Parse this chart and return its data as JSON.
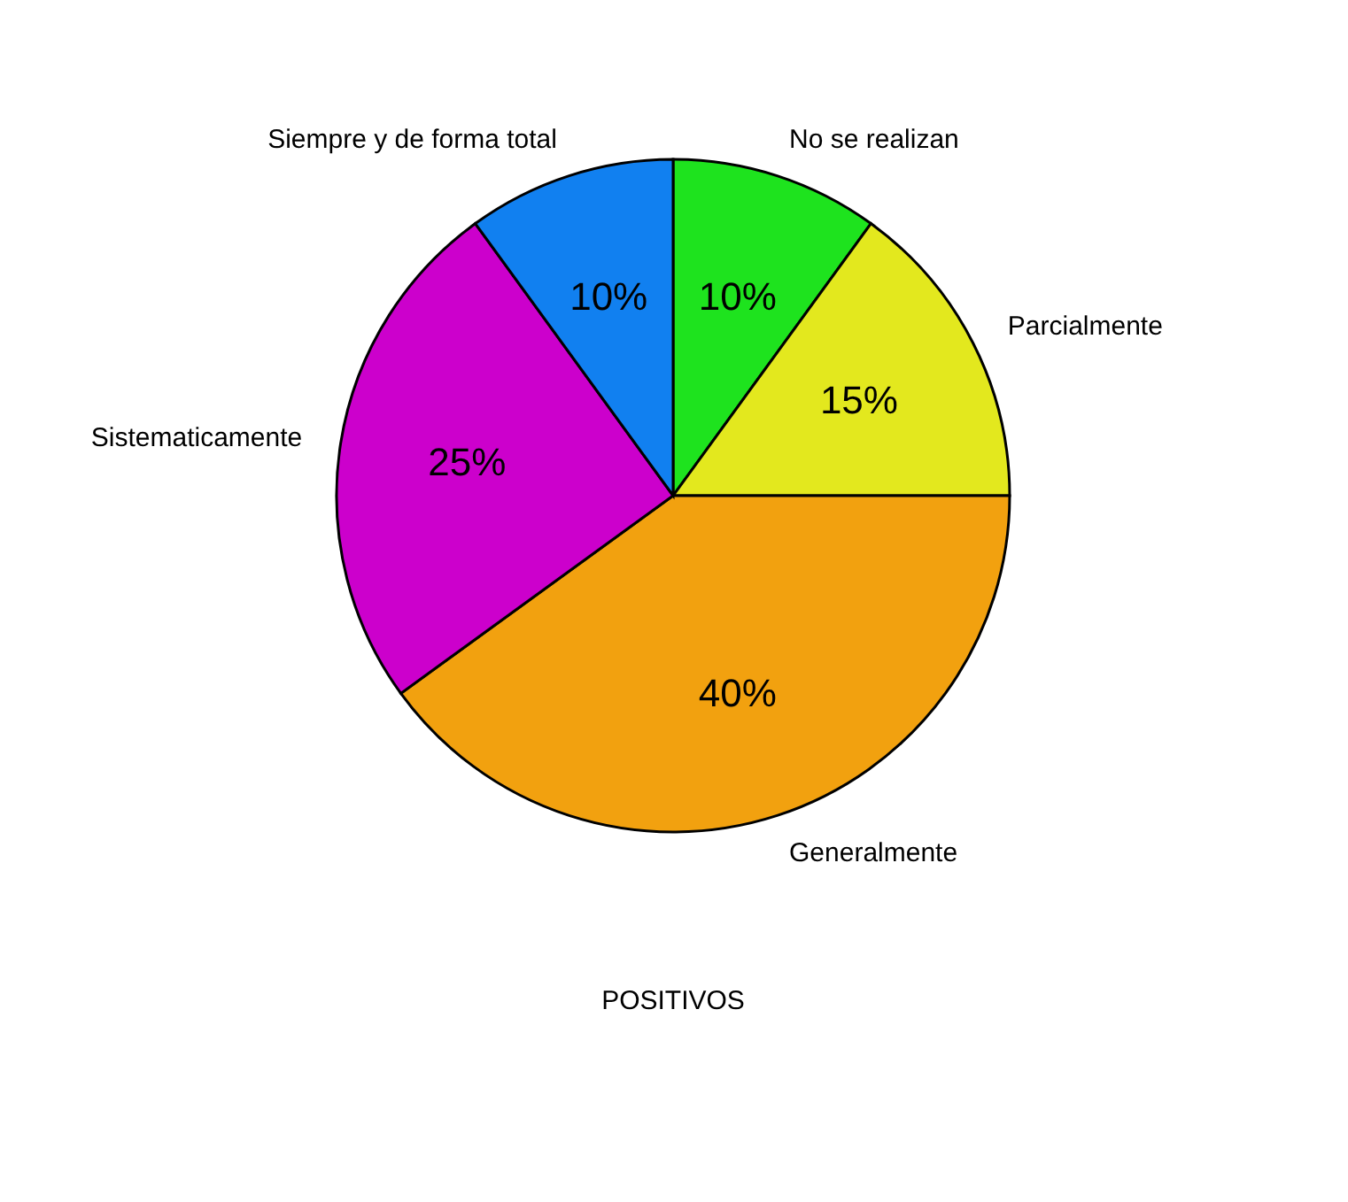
{
  "chart_data": {
    "type": "pie",
    "categories": [
      "No se realizan",
      "Parcialmente",
      "Generalmente",
      "Sistematicamente",
      "Siempre y de forma total"
    ],
    "values": [
      10,
      15,
      40,
      25,
      10
    ],
    "value_labels": [
      "10%",
      "15%",
      "40%",
      "25%",
      "10%"
    ],
    "colors": [
      "#1ee31e",
      "#e3e81e",
      "#f2a10f",
      "#cc00cc",
      "#1180f0"
    ],
    "annotations": [
      "POSITIVOS"
    ],
    "legend": false
  }
}
